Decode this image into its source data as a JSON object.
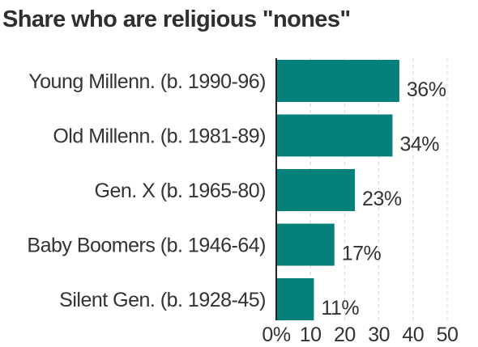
{
  "chart_data": {
    "type": "bar",
    "orientation": "horizontal",
    "title": "Share who are religious \"nones\"",
    "categories": [
      "Young Millenn. (b. 1990-96)",
      "Old Millenn. (b. 1981-89)",
      "Gen. X (b. 1965-80)",
      "Baby Boomers (b. 1946-64)",
      "Silent Gen. (b. 1928-45)"
    ],
    "values": [
      36,
      34,
      23,
      17,
      11
    ],
    "value_labels": [
      "36%",
      "34%",
      "23%",
      "17%",
      "11%"
    ],
    "xlim": [
      0,
      50
    ],
    "x_ticks": [
      0,
      10,
      20,
      30,
      40,
      50
    ],
    "x_tick_labels": [
      "0%",
      "10",
      "20",
      "30",
      "40",
      "50"
    ],
    "grid": "vertical-dashed",
    "bar_color": "#06807b"
  }
}
